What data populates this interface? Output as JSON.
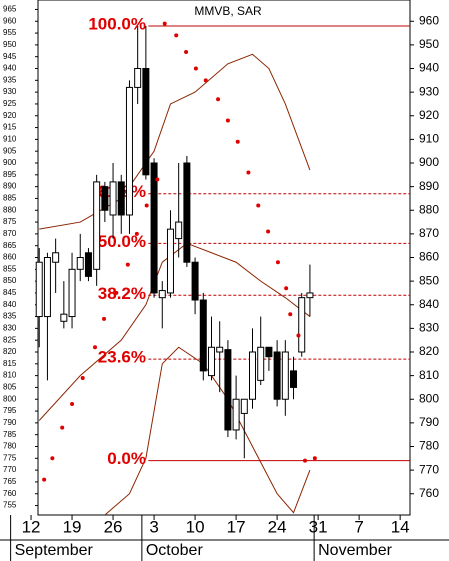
{
  "chart_data": {
    "type": "candlestick",
    "title": "MMVB, SAR",
    "xlim": [
      0.85,
      46.2
    ],
    "ylim": [
      751,
      969
    ],
    "y2lim": [
      751,
      969
    ],
    "yticks": [
      755,
      760,
      765,
      770,
      775,
      780,
      785,
      790,
      795,
      800,
      805,
      810,
      815,
      820,
      825,
      830,
      835,
      840,
      845,
      850,
      855,
      860,
      865,
      870,
      875,
      880,
      885,
      890,
      895,
      900,
      905,
      910,
      915,
      920,
      925,
      930,
      935,
      940,
      945,
      950,
      955,
      960,
      965
    ],
    "y2ticks": [
      760,
      770,
      780,
      790,
      800,
      810,
      820,
      830,
      840,
      850,
      860,
      870,
      880,
      890,
      900,
      910,
      920,
      930,
      940,
      950,
      960
    ],
    "xticks": [
      {
        "value": 0,
        "label": "12"
      },
      {
        "value": 5,
        "label": "19"
      },
      {
        "value": 10,
        "label": "26"
      },
      {
        "value": 15,
        "label": "3"
      },
      {
        "value": 20,
        "label": "10"
      },
      {
        "value": 25,
        "label": "17"
      },
      {
        "value": 30,
        "label": "24"
      },
      {
        "value": 35,
        "label": "31"
      },
      {
        "value": 40,
        "label": "7"
      },
      {
        "value": 45,
        "label": "14"
      }
    ],
    "months": [
      {
        "value": -2,
        "label": "September"
      },
      {
        "value": 14,
        "label": "October"
      },
      {
        "value": 35,
        "label": "November"
      }
    ],
    "candles": {
      "x": [
        1,
        2,
        3,
        4,
        5,
        6,
        7,
        8,
        9,
        10,
        11,
        12,
        13,
        14,
        15,
        16,
        17,
        18,
        19,
        20,
        21,
        22,
        23,
        24,
        25,
        26,
        27,
        28,
        29,
        30,
        31,
        32,
        33,
        34
      ],
      "open": [
        835,
        835,
        858,
        833,
        835,
        855,
        862,
        855,
        890,
        878,
        892,
        878,
        932,
        940,
        900,
        843,
        845,
        868,
        900,
        858,
        842,
        810,
        820,
        821,
        787,
        794,
        800,
        808,
        822,
        820,
        800,
        812,
        820,
        843
      ],
      "high": [
        864,
        862,
        868,
        850,
        862,
        870,
        864,
        895,
        892,
        900,
        895,
        935,
        958,
        958,
        902,
        850,
        880,
        900,
        903,
        860,
        845,
        835,
        833,
        825,
        810,
        800,
        830,
        835,
        822,
        825,
        825,
        818,
        845,
        857
      ],
      "low": [
        822,
        808,
        845,
        830,
        830,
        850,
        850,
        848,
        875,
        868,
        870,
        870,
        925,
        893,
        843,
        830,
        843,
        860,
        856,
        836,
        808,
        808,
        803,
        784,
        783,
        775,
        796,
        806,
        812,
        797,
        793,
        800,
        818,
        835
      ],
      "close": [
        858,
        860,
        862,
        836,
        855,
        860,
        852,
        892,
        880,
        892,
        878,
        932,
        940,
        895,
        845,
        846,
        872,
        875,
        858,
        842,
        812,
        822,
        822,
        787,
        800,
        800,
        820,
        822,
        818,
        800,
        820,
        805,
        843,
        845
      ]
    },
    "sar": {
      "color": "#e00000",
      "x": [
        1.6,
        2.6,
        3.8,
        5,
        6.3,
        7.8,
        8.9,
        10.4,
        11.8,
        12.9,
        14.1,
        15.4,
        16.3,
        17.7,
        18.9,
        20.1,
        21.3,
        22.8,
        24,
        25.2,
        26.5,
        27.7,
        28.9,
        30.1,
        31.1,
        31.6,
        32.6,
        33.4,
        34.6
      ],
      "values": [
        766,
        775,
        788,
        798,
        809,
        822,
        834,
        845,
        857,
        870,
        882,
        893,
        959,
        954,
        947,
        940,
        935,
        927,
        918,
        909,
        896,
        882,
        871,
        858,
        847,
        836,
        827,
        774,
        775
      ]
    },
    "bands": {
      "color": "#8b2500",
      "lines": [
        {
          "x": [
            1,
            6,
            11,
            15,
            17,
            20,
            24,
            27,
            29,
            31,
            34
          ],
          "values": [
            872,
            875,
            885,
            905,
            925,
            930,
            942,
            946,
            940,
            925,
            897
          ]
        },
        {
          "x": [
            1,
            6,
            11,
            14,
            16,
            19,
            22,
            25,
            28,
            31,
            34
          ],
          "values": [
            791,
            810,
            825,
            840,
            858,
            866,
            862,
            858,
            850,
            843,
            835
          ]
        },
        {
          "x": [
            9,
            12,
            14,
            16,
            18,
            21,
            24,
            27,
            30,
            32,
            34
          ],
          "values": [
            751,
            760,
            775,
            815,
            822,
            815,
            800,
            780,
            760,
            752,
            770
          ]
        }
      ]
    },
    "fib_levels": {
      "color": "#c00000",
      "start": 14.3,
      "items": [
        {
          "label": "100.0%",
          "value": 958
        },
        {
          "label": "61.8%",
          "value": 887
        },
        {
          "label": "50.0%",
          "value": 866
        },
        {
          "label": "38.2%",
          "value": 844
        },
        {
          "label": "23.6%",
          "value": 817
        },
        {
          "label": "0.0%",
          "value": 774
        }
      ]
    }
  }
}
